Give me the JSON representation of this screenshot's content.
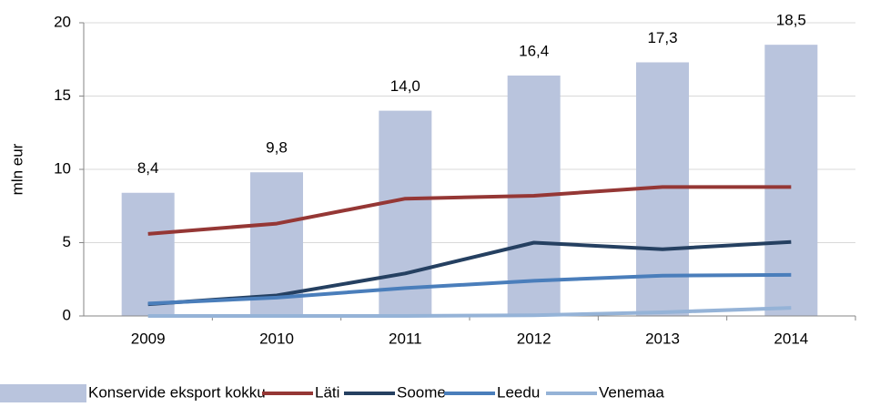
{
  "chart_data": {
    "type": "bar",
    "y_label": "mln eur",
    "categories": [
      "2009",
      "2010",
      "2011",
      "2012",
      "2013",
      "2014"
    ],
    "series": [
      {
        "name": "Konservide eksport kokku",
        "type": "bar",
        "color": "#b9c4dd",
        "values": [
          8.4,
          9.8,
          14.0,
          16.4,
          17.3,
          18.5
        ],
        "value_labels": [
          "8,4",
          "9,8",
          "14,0",
          "16,4",
          "17,3",
          "18,5"
        ]
      },
      {
        "name": "Läti",
        "type": "line",
        "color": "#953735",
        "values": [
          5.6,
          6.3,
          8.0,
          8.2,
          8.8,
          8.8
        ]
      },
      {
        "name": "Soome",
        "type": "line",
        "color": "#254061",
        "values": [
          0.8,
          1.4,
          2.9,
          5.0,
          4.55,
          5.05
        ]
      },
      {
        "name": "Leedu",
        "type": "line",
        "color": "#4a7ebb",
        "values": [
          0.85,
          1.25,
          1.9,
          2.4,
          2.75,
          2.8
        ]
      },
      {
        "name": "Venemaa",
        "type": "line",
        "color": "#95b3d7",
        "values": [
          0,
          0,
          0,
          0.05,
          0.25,
          0.55
        ]
      }
    ],
    "ylim": [
      0,
      20
    ],
    "yticks": [
      0,
      5,
      10,
      15,
      20
    ],
    "grid": true,
    "legend": "bottom"
  }
}
